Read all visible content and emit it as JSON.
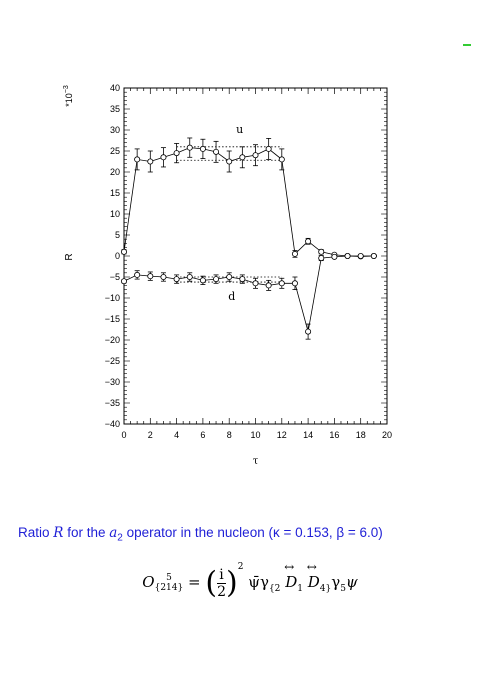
{
  "chart_data": {
    "type": "scatter",
    "xlabel": "τ",
    "ylabel": "R",
    "scale_label": "*10",
    "scale_exponent": "−3",
    "xlim": [
      0,
      20
    ],
    "ylim": [
      -40,
      40
    ],
    "x_ticks": [
      0,
      2,
      4,
      6,
      8,
      10,
      12,
      14,
      16,
      18,
      20
    ],
    "y_ticks": [
      40,
      35,
      30,
      25,
      20,
      15,
      10,
      5,
      0,
      -5,
      -10,
      -15,
      -20,
      -25,
      -30,
      -35,
      -40
    ],
    "grid": false,
    "series": [
      {
        "name": "u",
        "x": [
          0,
          1,
          2,
          3,
          4,
          5,
          6,
          7,
          8,
          9,
          10,
          11,
          12,
          13,
          14,
          15,
          16,
          17,
          18,
          19
        ],
        "y": [
          1,
          23,
          22.5,
          23.5,
          24.5,
          25.8,
          25.5,
          24.8,
          22.5,
          23.5,
          24,
          25.5,
          23,
          0.5,
          3.5,
          1,
          0.3,
          0,
          -0.1,
          0
        ],
        "err": [
          0.5,
          2.5,
          2.5,
          2.3,
          2.3,
          2.3,
          2.3,
          2.5,
          2.5,
          2.5,
          2.5,
          2.5,
          2.5,
          0.8,
          0.7,
          0.5,
          0.3,
          0.2,
          0.2,
          0.2
        ]
      },
      {
        "name": "d",
        "x": [
          0,
          1,
          2,
          3,
          4,
          5,
          6,
          7,
          8,
          9,
          10,
          11,
          12,
          13,
          14,
          15,
          16,
          17,
          18,
          19
        ],
        "y": [
          -6,
          -4.5,
          -4.8,
          -5,
          -5.5,
          -5,
          -5.8,
          -5.5,
          -5,
          -5.5,
          -6.5,
          -7,
          -6.5,
          -6.5,
          -18,
          -0.5,
          -0.2,
          0,
          0,
          0
        ],
        "err": [
          0.4,
          1,
          1,
          1,
          1,
          1,
          1,
          1,
          1,
          1,
          1.2,
          1.2,
          1.2,
          1.5,
          1.8,
          0.6,
          0.3,
          0.2,
          0.2,
          0.2
        ]
      }
    ],
    "fit_bands": [
      {
        "series": "u",
        "x_range": [
          4,
          12
        ],
        "upper": 26,
        "lower": 22.8
      },
      {
        "series": "d",
        "x_range": [
          4,
          12
        ],
        "upper": -5,
        "lower": -6.2
      }
    ],
    "annotations": [
      "u",
      "d"
    ]
  },
  "caption": {
    "prefix": "Ratio ",
    "var": "R",
    "middle": " for the ",
    "op": "a",
    "op_sub": "2",
    "suffix": " operator in the nucleon (κ = 0.153, β = 6.0)"
  },
  "formula": {
    "lhs": "O",
    "lhs_sup": "5",
    "lhs_sub": "{214}",
    "equals": " = ",
    "frac_num": "i",
    "frac_den": "2",
    "power": "2",
    "rhs_start": " ψ̄γ",
    "rhs_sub1": "{2",
    "d1": "D",
    "d1_sub": "1",
    "d2": "D",
    "d2_sub": "4}",
    "gamma": "γ",
    "gamma_sub": "5",
    "psi": "ψ"
  },
  "colors": {
    "caption": "#1f1fd6",
    "corner_mark": "#33cc33"
  }
}
